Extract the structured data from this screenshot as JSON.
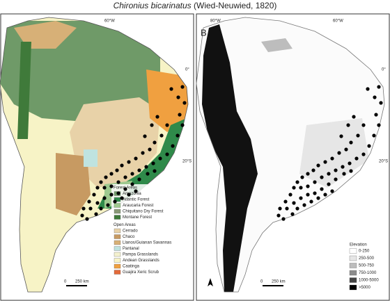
{
  "title": {
    "species": "Chironius bicarinatus",
    "authority": "(Wied-Neuwied, 1820)"
  },
  "panel_a": {
    "lon_labels": [
      "60°W"
    ],
    "lat_labels": [
      "0°",
      "20°S"
    ],
    "legend": {
      "forest_heading": "Forest Areas",
      "forest_items": [
        {
          "name": "Amazonia",
          "color": "#6f9a68"
        },
        {
          "name": "Atlantic Forest",
          "color": "#2f8a4a"
        },
        {
          "name": "Araucaria Forest",
          "color": "#9fc98f"
        },
        {
          "name": "Chiquitano Dry Forest",
          "color": "#8a9a78"
        },
        {
          "name": "Montane Forest",
          "color": "#3f7a3a"
        }
      ],
      "open_heading": "Open Areas",
      "open_items": [
        {
          "name": "Cerrado",
          "color": "#e8d2a8"
        },
        {
          "name": "Chaco",
          "color": "#c79a62"
        },
        {
          "name": "Llanos/Guianan Savannas",
          "color": "#d7b077"
        },
        {
          "name": "Pantanal",
          "color": "#bfe3e0"
        },
        {
          "name": "Pampa Grasslands",
          "color": "#f4f1cf"
        },
        {
          "name": "Andean Grasslands",
          "color": "#f7f3c6"
        },
        {
          "name": "Caatinga",
          "color": "#f0a040"
        },
        {
          "name": "Guajira Xeric Scrub",
          "color": "#e36a3a"
        }
      ]
    },
    "scale": {
      "zero": "0",
      "distance": "250 km"
    }
  },
  "panel_b": {
    "label": "B",
    "lon_labels": [
      "80°W",
      "60°W"
    ],
    "lat_labels": [
      "0°",
      "20°S"
    ],
    "legend": {
      "heading": "Elevation",
      "items": [
        {
          "name": "0-250",
          "color": "#ffffff"
        },
        {
          "name": "250-500",
          "color": "#e6e6e6"
        },
        {
          "name": "500-750",
          "color": "#bdbdbd"
        },
        {
          "name": "750-1000",
          "color": "#8c8c8c"
        },
        {
          "name": "1000-5000",
          "color": "#444444"
        },
        {
          "name": ">5000",
          "color": "#000000"
        }
      ]
    },
    "scale": {
      "zero": "0",
      "distance": "250 km"
    }
  }
}
